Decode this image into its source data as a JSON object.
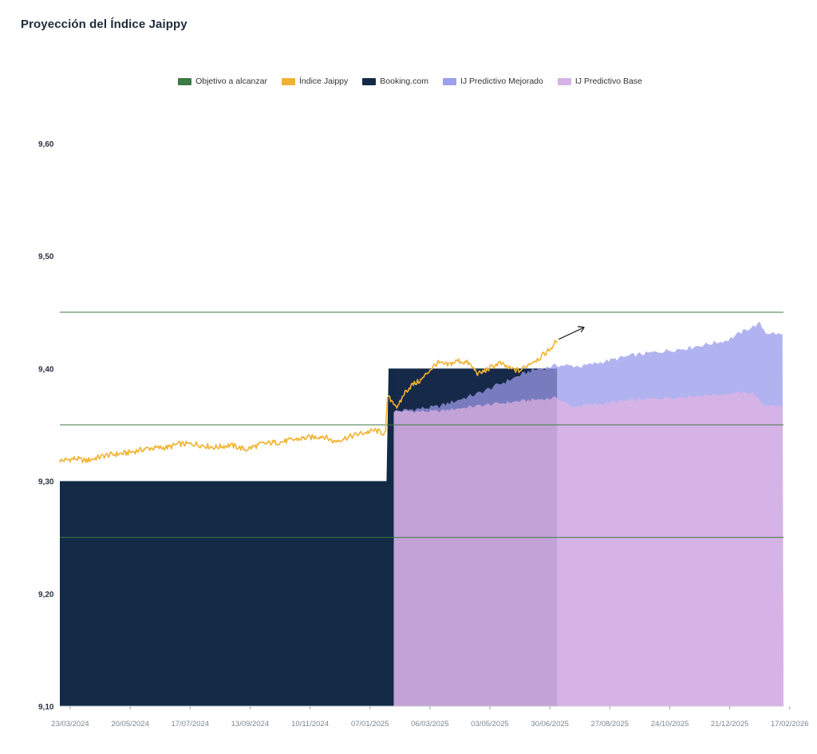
{
  "title": "Proyección del Índice Jaippy",
  "legend": [
    {
      "label": "Objetivo a alcanzar",
      "color": "#3d7a45",
      "name": "legend-objetivo"
    },
    {
      "label": "Índice Jaippy",
      "color": "#f0b230",
      "name": "legend-indice-jaippy"
    },
    {
      "label": "Booking.com",
      "color": "#122a45",
      "name": "legend-booking"
    },
    {
      "label": "IJ Predictivo Mejorado",
      "color": "#9da0ec",
      "name": "legend-ij-mejorado"
    },
    {
      "label": "IJ Predictivo Base",
      "color": "#d6b3e6",
      "name": "legend-ij-base"
    }
  ],
  "chart_data": {
    "type": "area",
    "title": "Proyección del Índice Jaippy",
    "xlabel": "",
    "ylabel": "",
    "ylim": [
      9.1,
      9.6
    ],
    "yticks": [
      "9,10",
      "9,20",
      "9,30",
      "9,40",
      "9,50",
      "9,60"
    ],
    "x_range_days": [
      -5,
      695
    ],
    "x_ticks": [
      {
        "label": "23/03/2024",
        "day": 5
      },
      {
        "label": "20/05/2024",
        "day": 63
      },
      {
        "label": "17/07/2024",
        "day": 121
      },
      {
        "label": "13/09/2024",
        "day": 179
      },
      {
        "label": "10/11/2024",
        "day": 237
      },
      {
        "label": "07/01/2025",
        "day": 295
      },
      {
        "label": "06/03/2025",
        "day": 353
      },
      {
        "label": "03/05/2025",
        "day": 411
      },
      {
        "label": "30/06/2025",
        "day": 469
      },
      {
        "label": "27/08/2025",
        "day": 527
      },
      {
        "label": "24/10/2025",
        "day": 585
      },
      {
        "label": "21/12/2025",
        "day": 643
      },
      {
        "label": "17/02/2026",
        "day": 701
      }
    ],
    "objetivo_lines": [
      9.25,
      9.35,
      9.45
    ],
    "booking": [
      {
        "day": -5,
        "value": 9.3
      },
      {
        "day": 311,
        "value": 9.3
      },
      {
        "day": 313,
        "value": 9.4
      },
      {
        "day": 476,
        "value": 9.4
      }
    ],
    "indice_jaippy": [
      {
        "day": -5,
        "value": 9.318
      },
      {
        "day": 10,
        "value": 9.32
      },
      {
        "day": 20,
        "value": 9.318
      },
      {
        "day": 40,
        "value": 9.323
      },
      {
        "day": 60,
        "value": 9.325
      },
      {
        "day": 80,
        "value": 9.329
      },
      {
        "day": 100,
        "value": 9.33
      },
      {
        "day": 110,
        "value": 9.333
      },
      {
        "day": 125,
        "value": 9.333
      },
      {
        "day": 145,
        "value": 9.33
      },
      {
        "day": 160,
        "value": 9.332
      },
      {
        "day": 175,
        "value": 9.328
      },
      {
        "day": 190,
        "value": 9.333
      },
      {
        "day": 210,
        "value": 9.335
      },
      {
        "day": 230,
        "value": 9.338
      },
      {
        "day": 250,
        "value": 9.34
      },
      {
        "day": 260,
        "value": 9.335
      },
      {
        "day": 270,
        "value": 9.338
      },
      {
        "day": 285,
        "value": 9.342
      },
      {
        "day": 300,
        "value": 9.345
      },
      {
        "day": 310,
        "value": 9.342
      },
      {
        "day": 312,
        "value": 9.375
      },
      {
        "day": 318,
        "value": 9.37
      },
      {
        "day": 322,
        "value": 9.365
      },
      {
        "day": 328,
        "value": 9.378
      },
      {
        "day": 335,
        "value": 9.385
      },
      {
        "day": 345,
        "value": 9.39
      },
      {
        "day": 352,
        "value": 9.398
      },
      {
        "day": 360,
        "value": 9.405
      },
      {
        "day": 370,
        "value": 9.403
      },
      {
        "day": 380,
        "value": 9.407
      },
      {
        "day": 390,
        "value": 9.405
      },
      {
        "day": 400,
        "value": 9.395
      },
      {
        "day": 410,
        "value": 9.4
      },
      {
        "day": 420,
        "value": 9.405
      },
      {
        "day": 430,
        "value": 9.4
      },
      {
        "day": 440,
        "value": 9.398
      },
      {
        "day": 450,
        "value": 9.405
      },
      {
        "day": 460,
        "value": 9.41
      },
      {
        "day": 470,
        "value": 9.418
      },
      {
        "day": 476,
        "value": 9.425
      }
    ],
    "ij_predictivo_mejorado": [
      {
        "day": 318,
        "value": 9.362
      },
      {
        "day": 360,
        "value": 9.366
      },
      {
        "day": 400,
        "value": 9.378
      },
      {
        "day": 450,
        "value": 9.398
      },
      {
        "day": 476,
        "value": 9.403
      },
      {
        "day": 500,
        "value": 9.402
      },
      {
        "day": 550,
        "value": 9.412
      },
      {
        "day": 600,
        "value": 9.418
      },
      {
        "day": 640,
        "value": 9.425
      },
      {
        "day": 660,
        "value": 9.435
      },
      {
        "day": 672,
        "value": 9.44
      },
      {
        "day": 678,
        "value": 9.432
      },
      {
        "day": 695,
        "value": 9.43
      }
    ],
    "ij_predictivo_base": [
      {
        "day": 318,
        "value": 9.362
      },
      {
        "day": 360,
        "value": 9.362
      },
      {
        "day": 400,
        "value": 9.367
      },
      {
        "day": 450,
        "value": 9.372
      },
      {
        "day": 476,
        "value": 9.374
      },
      {
        "day": 490,
        "value": 9.366
      },
      {
        "day": 550,
        "value": 9.372
      },
      {
        "day": 600,
        "value": 9.375
      },
      {
        "day": 650,
        "value": 9.378
      },
      {
        "day": 665,
        "value": 9.379
      },
      {
        "day": 675,
        "value": 9.368
      },
      {
        "day": 695,
        "value": 9.366
      }
    ],
    "forecast_start_day": 318,
    "actual_end_day": 476
  }
}
